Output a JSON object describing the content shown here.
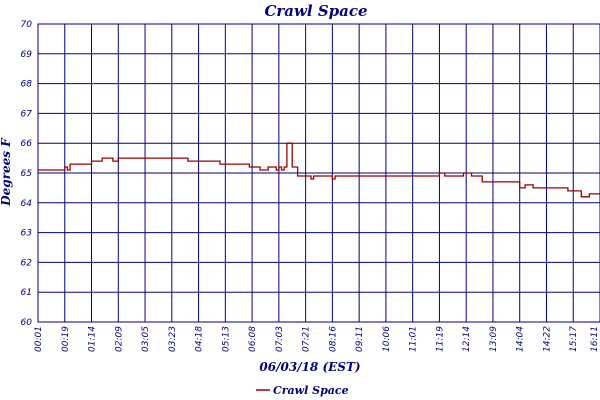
{
  "chart_data": {
    "type": "line",
    "title": "Crawl Space",
    "xlabel": "06/03/18 (EST)",
    "ylabel": "Degrees F",
    "ylim": [
      60,
      70
    ],
    "yticks": [
      "60",
      "61",
      "62",
      "63",
      "64",
      "65",
      "66",
      "67",
      "68",
      "69",
      "70"
    ],
    "xticks": [
      "00:01",
      "00:19",
      "01:14",
      "02:09",
      "03:05",
      "03:23",
      "04:18",
      "05:13",
      "06:08",
      "07:03",
      "07:21",
      "08:16",
      "09:11",
      "10:06",
      "11:01",
      "11:19",
      "12:14",
      "13:09",
      "14:04",
      "14:22",
      "15:17",
      "16:11"
    ],
    "grid": true,
    "legend": "bottom-left",
    "series": [
      {
        "name": "Crawl Space",
        "color": "#990000",
        "x": [
          0,
          0.8,
          1.0,
          1.1,
          1.2,
          1.4,
          1.6,
          2.0,
          2.4,
          2.8,
          3.0,
          3.2,
          3.4,
          3.6,
          4.0,
          4.5,
          5.0,
          5.5,
          5.6,
          5.8,
          6.0,
          6.2,
          6.5,
          6.8,
          7.0,
          7.5,
          7.9,
          8.3,
          8.6,
          8.9,
          9.0,
          9.1,
          9.2,
          9.3,
          9.5,
          9.7,
          9.9,
          10.0,
          10.2,
          10.3,
          10.5,
          10.8,
          11.0,
          11.1,
          11.3,
          11.6,
          11.9,
          12.3,
          12.8,
          13.2,
          13.6,
          14.0,
          14.3,
          14.6,
          15.0,
          15.2,
          15.6,
          15.9,
          16.2,
          16.4,
          16.6,
          16.8,
          17.0,
          17.3,
          17.6,
          18.0,
          18.2,
          18.5,
          18.8,
          19.0,
          19.2,
          19.5,
          19.8,
          20.0,
          20.3,
          20.6,
          21.0,
          21.3,
          21.6,
          22.0
        ],
        "y": [
          65.1,
          65.1,
          65.2,
          65.1,
          65.3,
          65.3,
          65.3,
          65.4,
          65.5,
          65.4,
          65.5,
          65.5,
          65.5,
          65.5,
          65.5,
          65.5,
          65.5,
          65.5,
          65.4,
          65.4,
          65.4,
          65.4,
          65.4,
          65.3,
          65.3,
          65.3,
          65.2,
          65.1,
          65.2,
          65.1,
          65.2,
          65.1,
          65.2,
          66.0,
          65.2,
          64.9,
          64.9,
          64.9,
          64.8,
          64.9,
          64.9,
          64.9,
          64.8,
          64.9,
          64.9,
          64.9,
          64.9,
          64.9,
          64.9,
          64.9,
          64.9,
          64.9,
          64.9,
          64.9,
          65.0,
          64.9,
          64.9,
          65.0,
          64.9,
          64.9,
          64.7,
          64.7,
          64.7,
          64.7,
          64.7,
          64.5,
          64.6,
          64.5,
          64.5,
          64.5,
          64.5,
          64.5,
          64.4,
          64.4,
          64.2,
          64.3,
          64.3,
          64.2,
          64.2,
          64.3
        ]
      }
    ]
  }
}
